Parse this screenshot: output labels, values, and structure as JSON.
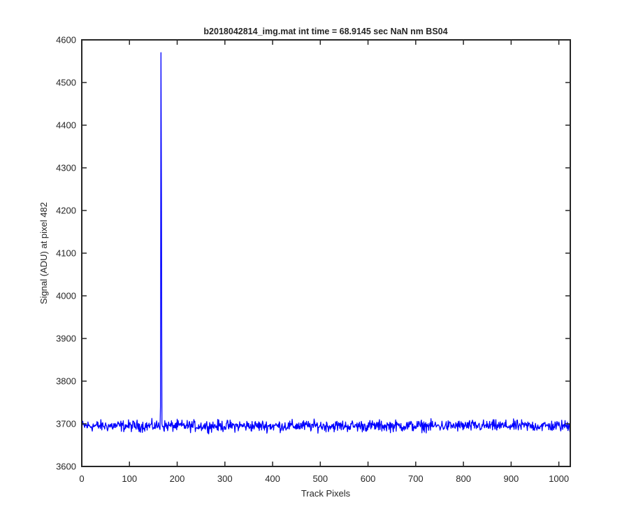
{
  "chart_data": {
    "type": "line",
    "title": "b2018042814_img.mat int time = 68.9145 sec  NaN nm BS04",
    "xlabel": "Track Pixels",
    "ylabel": "Signal (ADU) at pixel 482",
    "xlim": [
      0,
      1024
    ],
    "ylim": [
      3600,
      4600
    ],
    "xticks": [
      0,
      100,
      200,
      300,
      400,
      500,
      600,
      700,
      800,
      900,
      1000
    ],
    "yticks": [
      3600,
      3700,
      3800,
      3900,
      4000,
      4100,
      4200,
      4300,
      4400,
      4500,
      4600
    ],
    "grid": false,
    "legend": "none",
    "series": [
      {
        "color": "#0000ff",
        "baseline": 3695,
        "noise_amplitude": 12,
        "spikes": [
          {
            "x": 165,
            "y": 3740
          },
          {
            "x": 166,
            "y": 4570
          },
          {
            "x": 167,
            "y": 4232
          },
          {
            "x": 168,
            "y": 3700
          }
        ]
      }
    ]
  }
}
